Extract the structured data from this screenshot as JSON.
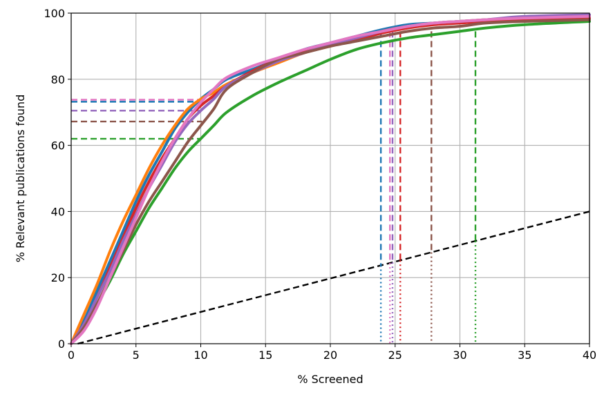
{
  "chart_data": {
    "type": "line",
    "title": "",
    "xlabel": "% Screened",
    "ylabel": "% Relevant publications found",
    "xlim": [
      0,
      40
    ],
    "ylim": [
      0,
      100
    ],
    "xticks": [
      0,
      5,
      10,
      15,
      20,
      25,
      30,
      35,
      40
    ],
    "yticks": [
      0,
      20,
      40,
      60,
      80,
      100
    ],
    "grid": true,
    "legend": "none",
    "series": [
      {
        "color": "#1f77b4",
        "points": [
          [
            0,
            0
          ],
          [
            1,
            7
          ],
          [
            2,
            16
          ],
          [
            3,
            25
          ],
          [
            4,
            34
          ],
          [
            5,
            43
          ],
          [
            6,
            51
          ],
          [
            7,
            58
          ],
          [
            8,
            65
          ],
          [
            9,
            70
          ],
          [
            10,
            74
          ],
          [
            11,
            77
          ],
          [
            12,
            80
          ],
          [
            14,
            83
          ],
          [
            16,
            86
          ],
          [
            18,
            89
          ],
          [
            20,
            91
          ],
          [
            22,
            93
          ],
          [
            24,
            95
          ],
          [
            26,
            96.5
          ],
          [
            28,
            97
          ],
          [
            30,
            97.5
          ],
          [
            32,
            98
          ],
          [
            35,
            98.5
          ],
          [
            40,
            99
          ]
        ]
      },
      {
        "color": "#ff7f0e",
        "points": [
          [
            0,
            0
          ],
          [
            1,
            9
          ],
          [
            2,
            18
          ],
          [
            3,
            28
          ],
          [
            4,
            37
          ],
          [
            5,
            45
          ],
          [
            6,
            53
          ],
          [
            7,
            60
          ],
          [
            8,
            66
          ],
          [
            9,
            71
          ],
          [
            10,
            74
          ],
          [
            11,
            76
          ],
          [
            12,
            78.5
          ],
          [
            14,
            82
          ],
          [
            16,
            85
          ],
          [
            18,
            88
          ],
          [
            20,
            90
          ],
          [
            22,
            92
          ],
          [
            24,
            94.5
          ],
          [
            26,
            96
          ],
          [
            28,
            97
          ],
          [
            30,
            97.5
          ],
          [
            32,
            98
          ],
          [
            35,
            98.5
          ],
          [
            40,
            99
          ]
        ]
      },
      {
        "color": "#2ca02c",
        "points": [
          [
            0,
            0
          ],
          [
            1,
            5
          ],
          [
            2,
            12
          ],
          [
            3,
            19
          ],
          [
            4,
            27
          ],
          [
            5,
            34
          ],
          [
            6,
            41
          ],
          [
            7,
            47
          ],
          [
            8,
            53
          ],
          [
            9,
            58
          ],
          [
            10,
            62
          ],
          [
            11,
            66
          ],
          [
            12,
            70
          ],
          [
            14,
            75
          ],
          [
            16,
            79
          ],
          [
            18,
            82.5
          ],
          [
            20,
            86
          ],
          [
            22,
            89
          ],
          [
            24,
            91
          ],
          [
            26,
            92.5
          ],
          [
            28,
            93.5
          ],
          [
            30,
            94.5
          ],
          [
            32,
            95.5
          ],
          [
            35,
            96.5
          ],
          [
            40,
            97.5
          ]
        ]
      },
      {
        "color": "#d62728",
        "points": [
          [
            0,
            0
          ],
          [
            1,
            6
          ],
          [
            2,
            14
          ],
          [
            3,
            23
          ],
          [
            4,
            32
          ],
          [
            5,
            41
          ],
          [
            6,
            49
          ],
          [
            7,
            56
          ],
          [
            8,
            62
          ],
          [
            9,
            68
          ],
          [
            10,
            72
          ],
          [
            11,
            75
          ],
          [
            12,
            78
          ],
          [
            14,
            82.5
          ],
          [
            16,
            86
          ],
          [
            18,
            88.5
          ],
          [
            20,
            90.5
          ],
          [
            22,
            92
          ],
          [
            24,
            94
          ],
          [
            26,
            95.5
          ],
          [
            28,
            96.5
          ],
          [
            30,
            97
          ],
          [
            32,
            97.5
          ],
          [
            35,
            98
          ],
          [
            40,
            98.5
          ]
        ]
      },
      {
        "color": "#9467bd",
        "points": [
          [
            0,
            0
          ],
          [
            1,
            6
          ],
          [
            2,
            14
          ],
          [
            3,
            22
          ],
          [
            4,
            31
          ],
          [
            5,
            39
          ],
          [
            6,
            47
          ],
          [
            7,
            54
          ],
          [
            8,
            61
          ],
          [
            9,
            66.5
          ],
          [
            10,
            70.5
          ],
          [
            11,
            74
          ],
          [
            12,
            78
          ],
          [
            14,
            82
          ],
          [
            16,
            85.5
          ],
          [
            18,
            88
          ],
          [
            20,
            90.5
          ],
          [
            22,
            92.5
          ],
          [
            24,
            94.5
          ],
          [
            26,
            96
          ],
          [
            28,
            97
          ],
          [
            30,
            97.5
          ],
          [
            32,
            98
          ],
          [
            35,
            99
          ],
          [
            40,
            99.5
          ]
        ]
      },
      {
        "color": "#8c564b",
        "points": [
          [
            0,
            0
          ],
          [
            1,
            5
          ],
          [
            2,
            12
          ],
          [
            3,
            20
          ],
          [
            4,
            28
          ],
          [
            5,
            36
          ],
          [
            6,
            43
          ],
          [
            7,
            49
          ],
          [
            8,
            55
          ],
          [
            9,
            61
          ],
          [
            10,
            66
          ],
          [
            11,
            71
          ],
          [
            12,
            77
          ],
          [
            14,
            82
          ],
          [
            16,
            86
          ],
          [
            18,
            88
          ],
          [
            20,
            90
          ],
          [
            22,
            91.5
          ],
          [
            24,
            93
          ],
          [
            26,
            94.5
          ],
          [
            28,
            95.5
          ],
          [
            30,
            96
          ],
          [
            32,
            97
          ],
          [
            35,
            97.5
          ],
          [
            40,
            98
          ]
        ]
      },
      {
        "color": "#e377c2",
        "points": [
          [
            0,
            0
          ],
          [
            1,
            4
          ],
          [
            2,
            11
          ],
          [
            3,
            20
          ],
          [
            4,
            29
          ],
          [
            5,
            38
          ],
          [
            6,
            47
          ],
          [
            7,
            55
          ],
          [
            8,
            62
          ],
          [
            9,
            68
          ],
          [
            10,
            73
          ],
          [
            11,
            77
          ],
          [
            12,
            80.5
          ],
          [
            14,
            84
          ],
          [
            16,
            86.5
          ],
          [
            18,
            89
          ],
          [
            20,
            91
          ],
          [
            22,
            93
          ],
          [
            24,
            94.5
          ],
          [
            26,
            96
          ],
          [
            28,
            97
          ],
          [
            30,
            97.5
          ],
          [
            32,
            98
          ],
          [
            35,
            98.5
          ],
          [
            40,
            99
          ]
        ]
      }
    ],
    "random_baseline": {
      "color": "#000000",
      "style": "dashed",
      "points": [
        [
          0.5,
          0
        ],
        [
          40,
          40
        ]
      ]
    },
    "horizontal_markers": [
      {
        "color": "#e377c2",
        "x_end": 10.2,
        "y": 73.8
      },
      {
        "color": "#1f77b4",
        "x_end": 10.2,
        "y": 73.2
      },
      {
        "color": "#9467bd",
        "x_end": 10.0,
        "y": 70.5
      },
      {
        "color": "#8c564b",
        "x_end": 10.1,
        "y": 67.2
      },
      {
        "color": "#2ca02c",
        "x_end": 10.0,
        "y": 62.0
      }
    ],
    "vertical_markers": [
      {
        "color": "#1f77b4",
        "x": 23.9,
        "y_top": 94.5
      },
      {
        "color": "#e377c2",
        "x": 24.6,
        "y_top": 94.5
      },
      {
        "color": "#9467bd",
        "x": 24.8,
        "y_top": 94.5
      },
      {
        "color": "#d62728",
        "x": 25.4,
        "y_top": 94.5
      },
      {
        "color": "#8c564b",
        "x": 27.8,
        "y_top": 94.5
      },
      {
        "color": "#2ca02c",
        "x": 31.2,
        "y_top": 94.5
      }
    ]
  }
}
